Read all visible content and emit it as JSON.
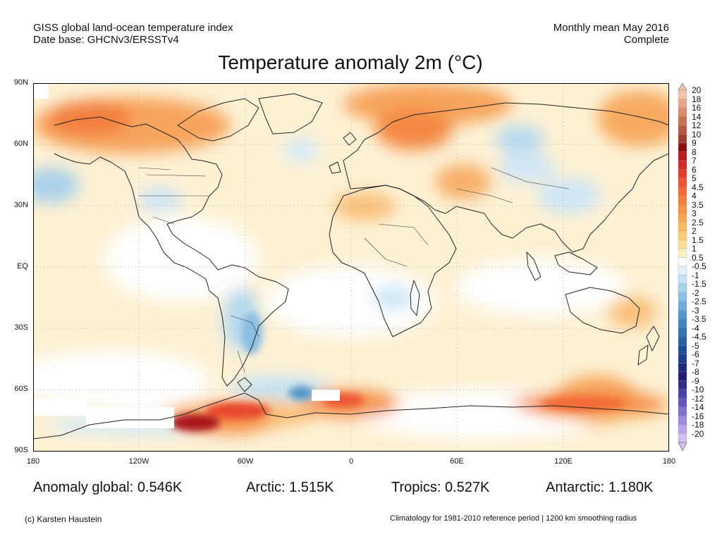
{
  "header": {
    "line1_left": "GISS global land-ocean temperature index",
    "line2_left": "Date base: GHCNv3/ERSSTv4",
    "line1_right": "Monthly mean May 2016",
    "line2_right": "Complete"
  },
  "title": "Temperature anomaly 2m (°C)",
  "map": {
    "lat_labels": [
      "90N",
      "60N",
      "30N",
      "EQ",
      "30S",
      "60S",
      "90S"
    ],
    "lon_labels": [
      "180",
      "120W",
      "60W",
      "0",
      "60E",
      "120E",
      "180"
    ]
  },
  "colorbar": {
    "labels": [
      "20",
      "18",
      "16",
      "14",
      "12",
      "10",
      "9",
      "8",
      "7",
      "6",
      "5",
      "4.5",
      "4",
      "3.5",
      "3",
      "2.5",
      "2",
      "1.5",
      "1",
      "0.5",
      "-0.5",
      "-1",
      "-1.5",
      "-2",
      "-2.5",
      "-3",
      "-3.5",
      "-4",
      "-4.5",
      "-5",
      "-6",
      "-7",
      "-8",
      "-9",
      "-10",
      "-12",
      "-14",
      "-16",
      "-18",
      "-20"
    ],
    "colors": [
      "#f2c4ad",
      "#e5a98c",
      "#d88e6e",
      "#c87356",
      "#b55a44",
      "#a04031",
      "#8c0f16",
      "#b41c1e",
      "#d22a2a",
      "#e43a2c",
      "#ee5434",
      "#f26a38",
      "#f4803e",
      "#f69346",
      "#f8a652",
      "#fab962",
      "#fccc78",
      "#fdde98",
      "#fdefc0",
      "#ffffff",
      "#ddeff9",
      "#c4e3f4",
      "#a7d2ec",
      "#8bbfe2",
      "#70acd6",
      "#5798c9",
      "#4284bd",
      "#3570b1",
      "#2b5ea5",
      "#234c98",
      "#1f3a8a",
      "#1d2a7c",
      "#241d6f",
      "#322c8a",
      "#4a3fa4",
      "#6556bb",
      "#8170cc",
      "#9c8ada",
      "#b7a5e6",
      "#d2c2f0"
    ]
  },
  "stats": {
    "global": "Anomaly global: 0.546K",
    "arctic": "Arctic: 1.515K",
    "tropics": "Tropics: 0.527K",
    "antarctic": "Antarctic: 1.180K"
  },
  "footer": {
    "left": "(c) Karsten Haustein",
    "right": "Climatology for 1981-2010 reference period | 1200 km smoothing radius"
  }
}
